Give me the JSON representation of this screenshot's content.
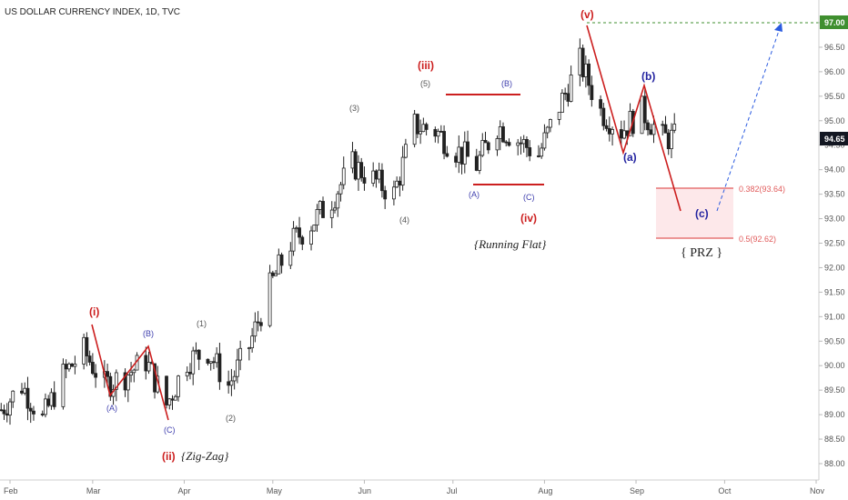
{
  "title": "US DOLLAR CURRENCY INDEX, 1D, TVC",
  "chart_data": {
    "type": "candlestick",
    "x_ticks": [
      "Feb",
      "Mar",
      "Apr",
      "May",
      "Jun",
      "Jul",
      "Aug",
      "Sep",
      "Oct",
      "Nov"
    ],
    "y_ticks": [
      "97.00",
      "96.50",
      "96.00",
      "95.50",
      "95.00",
      "94.50",
      "94.00",
      "93.50",
      "93.00",
      "92.50",
      "92.00",
      "91.50",
      "91.00",
      "90.50",
      "90.00",
      "89.50",
      "89.00",
      "88.50",
      "88.00"
    ],
    "ylim": [
      87.8,
      97.4
    ],
    "last_price": "94.65",
    "target_price": "97.00",
    "closes": [
      [
        "2018-01-29",
        89.1
      ],
      [
        "2018-02-05",
        89.6
      ],
      [
        "2018-02-12",
        88.9
      ],
      [
        "2018-02-19",
        89.8
      ],
      [
        "2018-02-26",
        90.3
      ],
      [
        "2018-03-05",
        89.6
      ],
      [
        "2018-03-12",
        89.8
      ],
      [
        "2018-03-19",
        90.1
      ],
      [
        "2018-03-26",
        89.2
      ],
      [
        "2018-04-02",
        90.1
      ],
      [
        "2018-04-09",
        90.3
      ],
      [
        "2018-04-16",
        89.6
      ],
      [
        "2018-04-23",
        90.4
      ],
      [
        "2018-04-30",
        91.6
      ],
      [
        "2018-05-07",
        92.5
      ],
      [
        "2018-05-14",
        92.9
      ],
      [
        "2018-05-21",
        93.4
      ],
      [
        "2018-05-28",
        94.1
      ],
      [
        "2018-06-04",
        93.8
      ],
      [
        "2018-06-11",
        93.5
      ],
      [
        "2018-06-18",
        94.9
      ],
      [
        "2018-06-25",
        94.8
      ],
      [
        "2018-07-02",
        94.4
      ],
      [
        "2018-07-09",
        94.1
      ],
      [
        "2018-07-16",
        94.9
      ],
      [
        "2018-07-23",
        94.6
      ],
      [
        "2018-07-30",
        94.3
      ],
      [
        "2018-08-06",
        95.3
      ],
      [
        "2018-08-13",
        96.2
      ],
      [
        "2018-08-20",
        95.2
      ],
      [
        "2018-08-27",
        94.8
      ],
      [
        "2018-09-03",
        95.2
      ],
      [
        "2018-09-10",
        94.65
      ]
    ],
    "waves": [
      {
        "label": "(i)",
        "value": 90.9,
        "date": "2018-03-01"
      },
      {
        "label": "(ii)",
        "value": 89.0,
        "date": "2018-03-22"
      },
      {
        "label": "(iii)",
        "value": 95.6,
        "date": "2018-05-29"
      },
      {
        "label": "(iv)",
        "value": 93.7,
        "date": "2018-07-05"
      },
      {
        "label": "(v)",
        "value": 96.85,
        "date": "2018-08-15"
      },
      {
        "label": "(A)",
        "value": 89.45,
        "date": "2018-03-06"
      },
      {
        "label": "(B)",
        "value": 90.45,
        "date": "2018-03-20"
      },
      {
        "label": "(C)",
        "value": 89.0,
        "date": "2018-03-28"
      },
      {
        "label": "(1)",
        "value": 90.6,
        "date": "2018-04-12"
      },
      {
        "label": "(2)",
        "value": 89.35,
        "date": "2018-04-17"
      },
      {
        "label": "(3)",
        "value": 95.0,
        "date": "2018-05-28"
      },
      {
        "label": "(4)",
        "value": 93.3,
        "date": "2018-06-12"
      },
      {
        "label": "(5)",
        "value": 95.6,
        "date": "2018-06-22"
      },
      {
        "label": "(A)",
        "value": 93.75,
        "date": "2018-07-05"
      },
      {
        "label": "(B)",
        "value": 95.6,
        "date": "2018-07-16"
      },
      {
        "label": "(C)",
        "value": 93.75,
        "date": "2018-07-24"
      },
      {
        "label": "(a)",
        "value": 94.4,
        "date": "2018-08-28"
      },
      {
        "label": "(b)",
        "value": 95.8,
        "date": "2018-08-31"
      },
      {
        "label": "(c)",
        "value": 93.15,
        "date": "2018-09-18"
      }
    ],
    "annotations": {
      "zigzag": "{Zig-Zag}",
      "running_flat": "{Running Flat}",
      "prz": "{ PRZ }",
      "fib_382": "0.382(93.64)",
      "fib_50": "0.5(92.62)"
    },
    "fib_levels": [
      93.64,
      92.62
    ],
    "colors": {
      "candle": "#222222",
      "wave_red": "#cc1f1f",
      "wave_blue": "#2323a0",
      "wave_gray": "#555555",
      "fib": "#e15c5c",
      "prz_fill": "#fde8ea",
      "target": "#3f8f2f",
      "projection": "#2b5be0",
      "last_tag": "#131722"
    },
    "grid": false
  }
}
